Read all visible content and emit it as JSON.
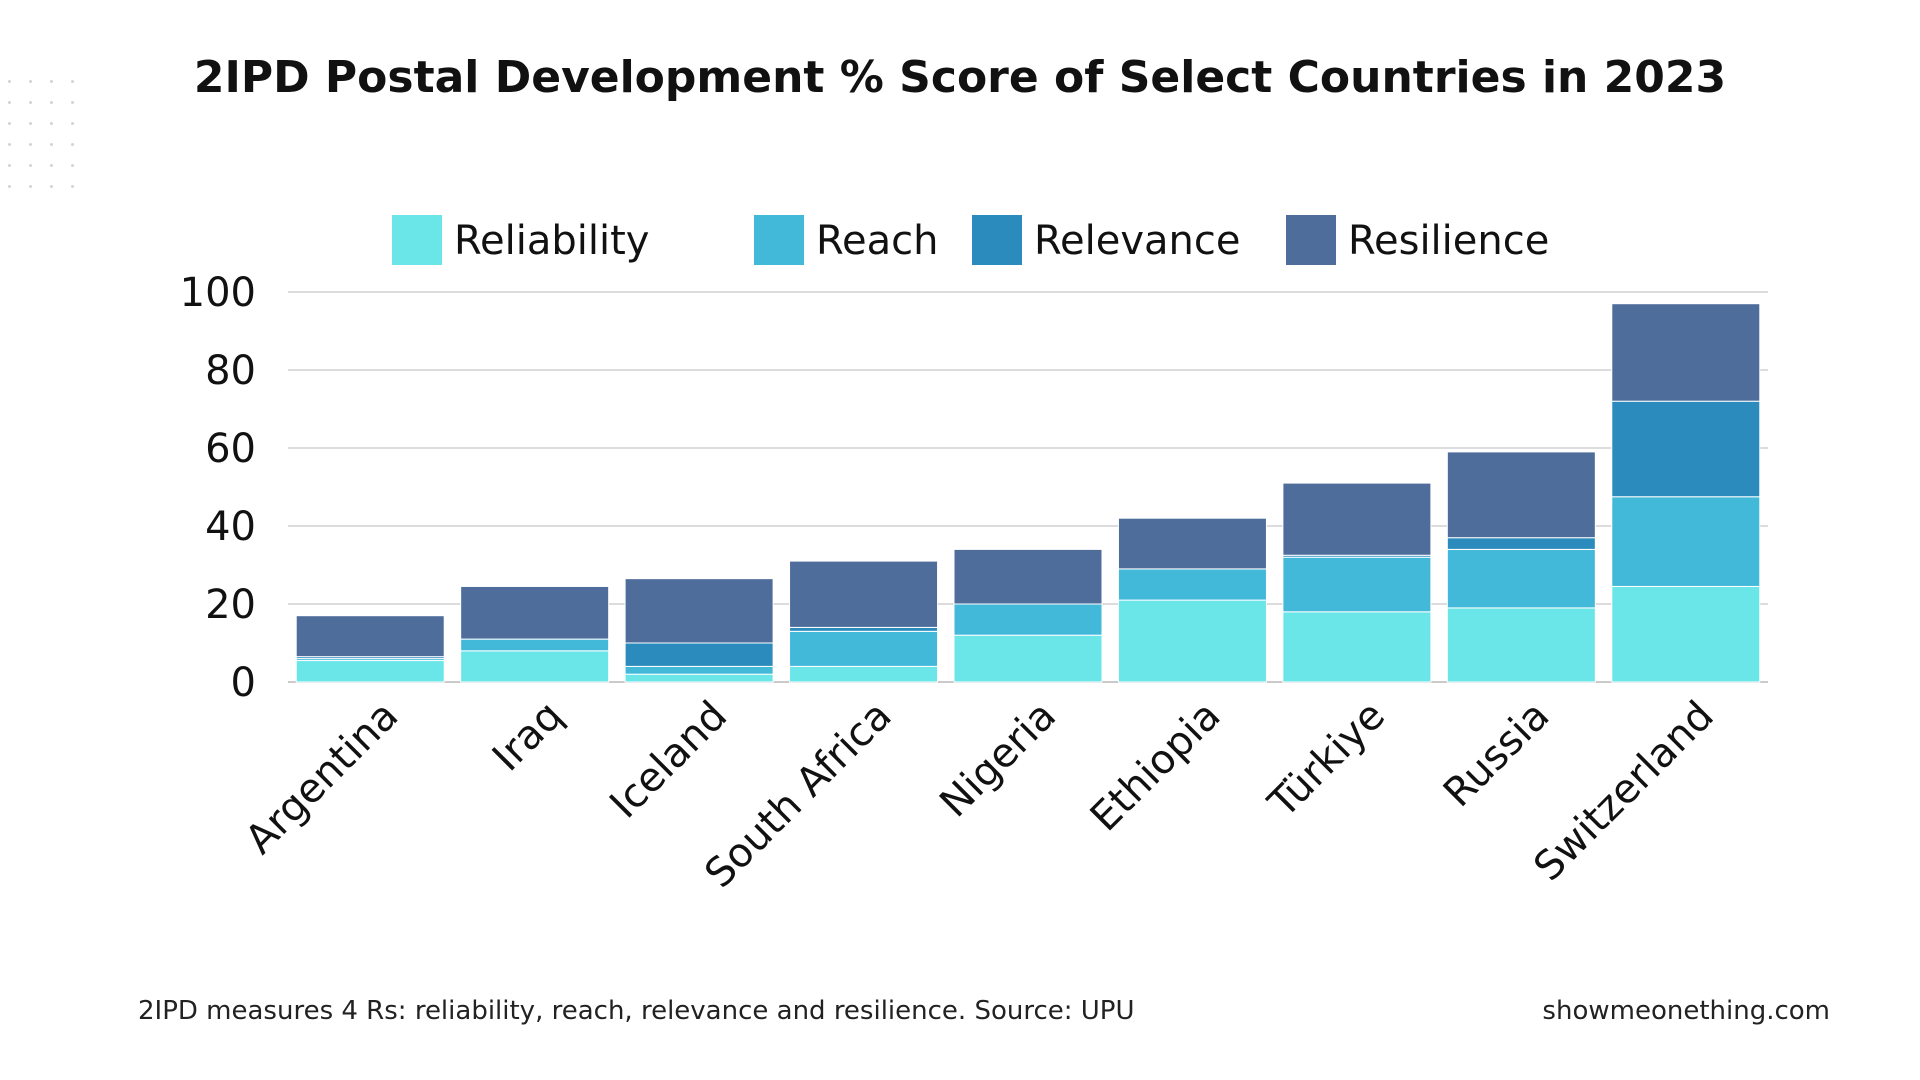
{
  "title": "2IPD Postal Development % Score of Select Countries in 2023",
  "footnote": "2IPD measures 4 Rs: reliability, reach, relevance and resilience. Source: UPU",
  "credit": "showmeonething.com",
  "chart_data": {
    "type": "bar",
    "stacked": true,
    "categories": [
      "Argentina",
      "Iraq",
      "Iceland",
      "South Africa",
      "Nigeria",
      "Ethiopia",
      "Türkiye",
      "Russia",
      "Switzerland"
    ],
    "series": [
      {
        "name": "Reliability",
        "color": "#6ae5e8",
        "values": [
          5.5,
          8,
          2,
          4,
          12,
          21,
          18,
          19,
          24.5
        ]
      },
      {
        "name": "Reach",
        "color": "#43b9da",
        "values": [
          0.5,
          3,
          2,
          9,
          8,
          8,
          14,
          15,
          23
        ]
      },
      {
        "name": "Relevance",
        "color": "#2a8bbc",
        "values": [
          0.5,
          0,
          6,
          1,
          0,
          0,
          0.5,
          3,
          24.5
        ]
      },
      {
        "name": "Resilience",
        "color": "#4f6d9a",
        "values": [
          10.5,
          13.5,
          16.5,
          17,
          14,
          13,
          18.5,
          22,
          25
        ]
      }
    ],
    "ylim": [
      0,
      100
    ],
    "yticks": [
      0,
      20,
      40,
      60,
      80,
      100
    ],
    "xlabel": "",
    "ylabel": "",
    "grid": true,
    "legend": "top-center",
    "gridline_color": "#d0d0d0"
  }
}
